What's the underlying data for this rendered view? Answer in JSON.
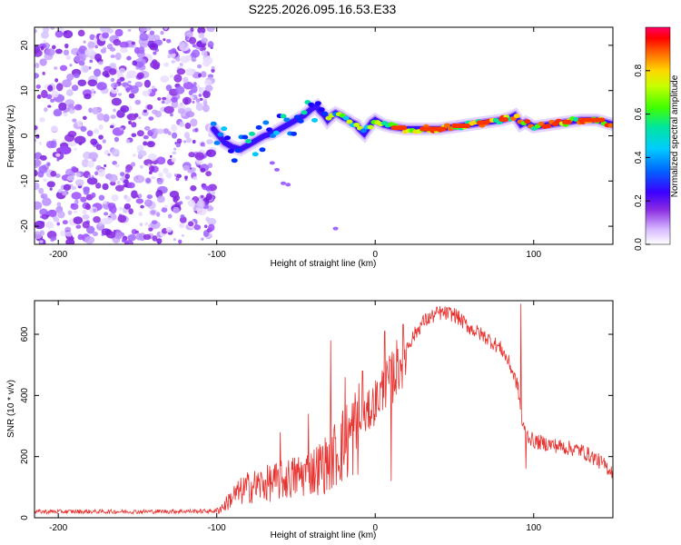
{
  "title": "S225.2026.095.16.53.E33",
  "colors": {
    "snr_line": "#e8322f",
    "axis": "#000000",
    "background": "#ffffff"
  },
  "chart_data": [
    {
      "type": "heatmap",
      "name": "spectrogram",
      "xlabel": "Height of straight line (km)",
      "ylabel": "Frequency (Hz)",
      "xlim": [
        -215,
        150
      ],
      "ylim": [
        -24,
        24
      ],
      "x_ticks": [
        -200,
        -100,
        0,
        100
      ],
      "y_ticks": [
        -20,
        -10,
        0,
        10,
        20
      ],
      "noise_region_x": [
        -215,
        -102
      ],
      "signal_track": {
        "x": [
          -102,
          -95,
          -90,
          -85,
          -80,
          -75,
          -70,
          -65,
          -60,
          -55,
          -50,
          -45,
          -40,
          -37,
          -35,
          -32,
          -30,
          -27,
          -25,
          -22,
          -20,
          -17,
          -15,
          -12,
          -10,
          -7,
          -5,
          -2,
          0,
          5,
          10,
          20,
          30,
          40,
          50,
          60,
          70,
          80,
          85,
          88,
          90,
          92,
          95,
          100,
          110,
          120,
          130,
          140,
          150
        ],
        "y": [
          1.5,
          -1.5,
          -2.5,
          -3,
          -2,
          -1,
          0,
          0.5,
          1.5,
          2.5,
          3.5,
          4.5,
          6,
          6.5,
          5.5,
          4.5,
          3.5,
          4.5,
          5,
          4.5,
          4,
          3.5,
          3,
          2.5,
          1.5,
          0.5,
          1.5,
          3,
          3.5,
          2.5,
          2,
          1.5,
          1.5,
          1.5,
          2,
          2.5,
          3,
          3.5,
          4,
          4.5,
          3.5,
          2.5,
          3,
          2,
          2.5,
          3,
          3.5,
          3.5,
          2.5
        ]
      },
      "colorbar": {
        "label": "Normalized spectral amplitude",
        "range": [
          0,
          1
        ],
        "ticks": [
          "0.0",
          "0.2",
          "0.4",
          "0.6",
          "0.8"
        ]
      }
    },
    {
      "type": "line",
      "name": "snr",
      "xlabel": "Height of straight line (km)",
      "ylabel": "SNR (10 * v/v)",
      "xlim": [
        -215,
        150
      ],
      "ylim": [
        0,
        710
      ],
      "x_ticks": [
        -200,
        -100,
        0,
        100
      ],
      "y_ticks": [
        0,
        200,
        400,
        600
      ],
      "series": [
        {
          "name": "SNR",
          "envelope_x": [
            -215,
            -150,
            -100,
            -95,
            -90,
            -80,
            -70,
            -60,
            -50,
            -40,
            -30,
            -20,
            -10,
            -5,
            0,
            5,
            10,
            20,
            30,
            40,
            50,
            60,
            70,
            80,
            85,
            90,
            93,
            96,
            100,
            110,
            120,
            130,
            140,
            150
          ],
          "envelope_y": [
            20,
            20,
            22,
            40,
            70,
            100,
            110,
            120,
            135,
            150,
            180,
            240,
            300,
            340,
            380,
            420,
            450,
            560,
            640,
            670,
            665,
            620,
            590,
            550,
            500,
            430,
            300,
            270,
            250,
            240,
            230,
            220,
            190,
            150
          ],
          "spikes_x": [
            -60,
            -42,
            -28,
            -19,
            -8,
            6,
            10,
            92,
            95
          ],
          "spikes_y": [
            280,
            340,
            580,
            460,
            480,
            610,
            120,
            700,
            160
          ]
        }
      ]
    }
  ]
}
